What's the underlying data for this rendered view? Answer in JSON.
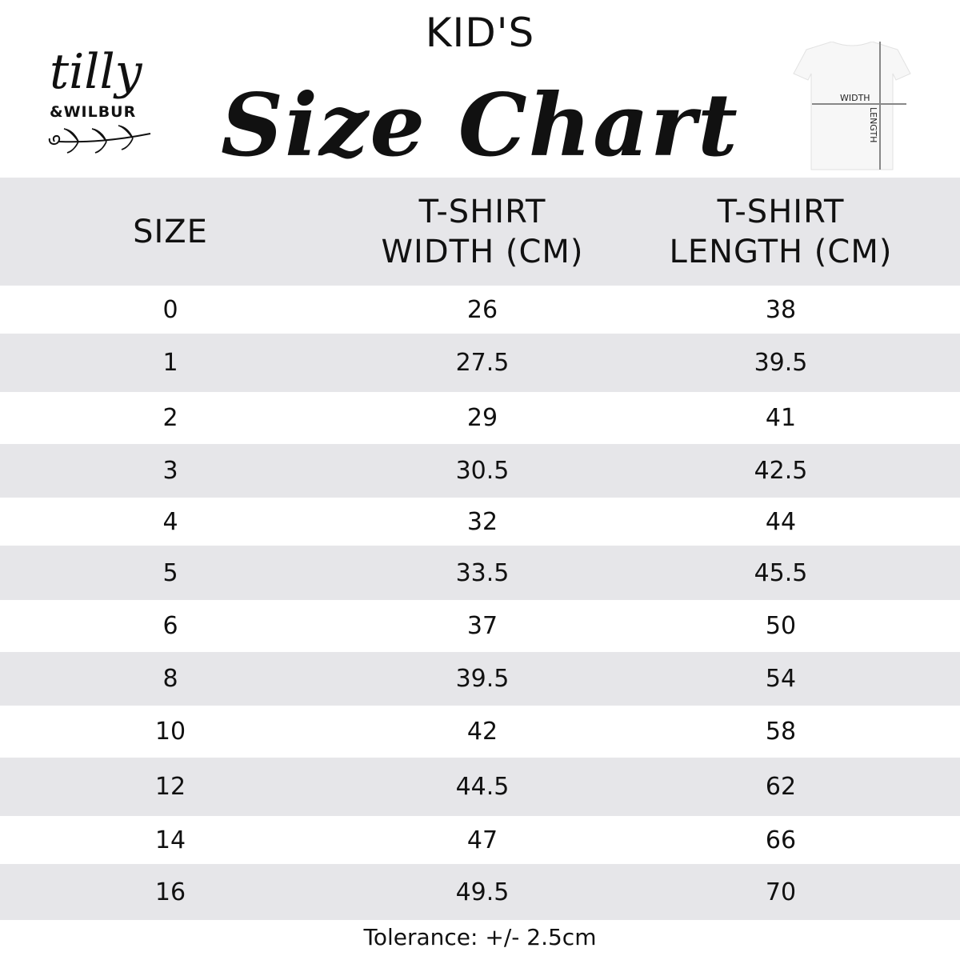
{
  "header": {
    "kicker": "KID'S",
    "title": "Size Chart"
  },
  "logo": {
    "line1": "tilly",
    "line2": "&WILBUR"
  },
  "diagram": {
    "width_label": "WIDTH",
    "length_label": "LENGTH"
  },
  "colors": {
    "band": "#e6e6e9",
    "text": "#111111"
  },
  "chart_data": {
    "type": "table",
    "columns": [
      "SIZE",
      "T-SHIRT WIDTH (CM)",
      "T-SHIRT LENGTH (CM)"
    ],
    "rows": [
      [
        "0",
        "26",
        "38"
      ],
      [
        "1",
        "27.5",
        "39.5"
      ],
      [
        "2",
        "29",
        "41"
      ],
      [
        "3",
        "30.5",
        "42.5"
      ],
      [
        "4",
        "32",
        "44"
      ],
      [
        "5",
        "33.5",
        "45.5"
      ],
      [
        "6",
        "37",
        "50"
      ],
      [
        "8",
        "39.5",
        "54"
      ],
      [
        "10",
        "42",
        "58"
      ],
      [
        "12",
        "44.5",
        "62"
      ],
      [
        "14",
        "47",
        "66"
      ],
      [
        "16",
        "49.5",
        "70"
      ]
    ]
  },
  "footer": {
    "tolerance": "Tolerance: +/- 2.5cm"
  }
}
